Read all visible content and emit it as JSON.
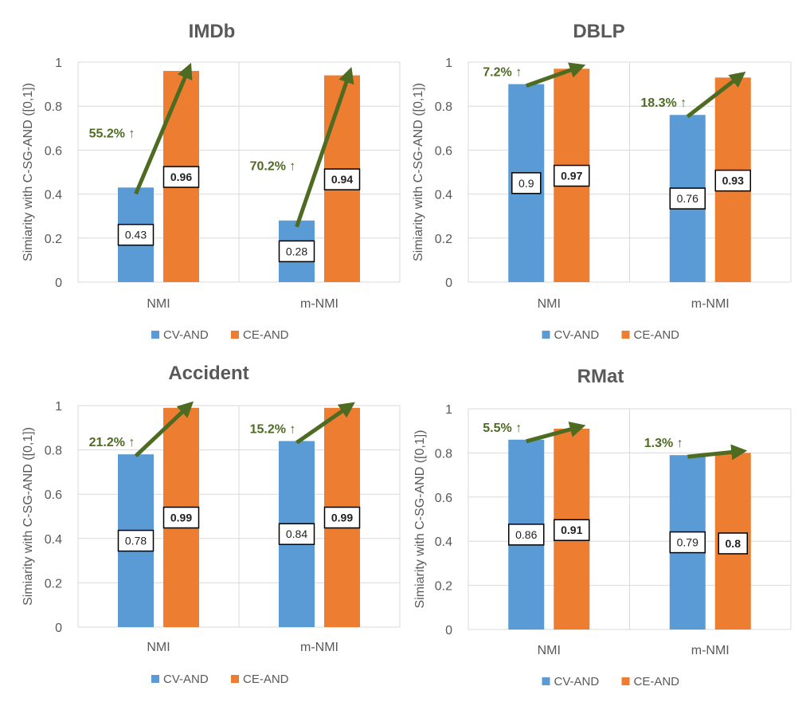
{
  "colors": {
    "cv": "#5b9bd5",
    "ce": "#ed7d31",
    "arrow": "#4e6b22",
    "grid": "#d9d9d9",
    "text": "#595959"
  },
  "series_names": [
    "CV-AND",
    "CE-AND"
  ],
  "ylabel": "Simiarity with C-SG-AND ([0,1])",
  "ytick_labels": [
    "0",
    "0.2",
    "0.4",
    "0.6",
    "0.8",
    "1"
  ],
  "chart_data": [
    {
      "type": "bar",
      "title": "IMDb",
      "categories": [
        "NMI",
        "m-NMI"
      ],
      "series": [
        {
          "name": "CV-AND",
          "values": [
            0.43,
            0.28
          ],
          "labels": [
            "0.43",
            "0.28"
          ]
        },
        {
          "name": "CE-AND",
          "values": [
            0.96,
            0.94
          ],
          "labels": [
            "0.96",
            "0.94"
          ]
        }
      ],
      "improvements": [
        "55.2% ↑",
        "70.2% ↑"
      ],
      "ylim": [
        0,
        1
      ],
      "legend": "bottom"
    },
    {
      "type": "bar",
      "title": "DBLP",
      "categories": [
        "NMI",
        "m-NMI"
      ],
      "series": [
        {
          "name": "CV-AND",
          "values": [
            0.9,
            0.76
          ],
          "labels": [
            "0.9",
            "0.76"
          ]
        },
        {
          "name": "CE-AND",
          "values": [
            0.97,
            0.93
          ],
          "labels": [
            "0.97",
            "0.93"
          ]
        }
      ],
      "improvements": [
        "7.2% ↑",
        "18.3% ↑"
      ],
      "ylim": [
        0,
        1
      ],
      "legend": "bottom"
    },
    {
      "type": "bar",
      "title": "Accident",
      "categories": [
        "NMI",
        "m-NMI"
      ],
      "series": [
        {
          "name": "CV-AND",
          "values": [
            0.78,
            0.84
          ],
          "labels": [
            "0.78",
            "0.84"
          ]
        },
        {
          "name": "CE-AND",
          "values": [
            0.99,
            0.99
          ],
          "labels": [
            "0.99",
            "0.99"
          ]
        }
      ],
      "improvements": [
        "21.2% ↑",
        "15.2% ↑"
      ],
      "ylim": [
        0,
        1
      ],
      "legend": "bottom"
    },
    {
      "type": "bar",
      "title": "RMat",
      "categories": [
        "NMI",
        "m-NMI"
      ],
      "series": [
        {
          "name": "CV-AND",
          "values": [
            0.86,
            0.79
          ],
          "labels": [
            "0.86",
            "0.79"
          ]
        },
        {
          "name": "CE-AND",
          "values": [
            0.91,
            0.8
          ],
          "labels": [
            "0.91",
            "0.8"
          ]
        }
      ],
      "improvements": [
        "5.5% ↑",
        "1.3% ↑"
      ],
      "ylim": [
        0,
        1
      ],
      "legend": "bottom"
    }
  ]
}
